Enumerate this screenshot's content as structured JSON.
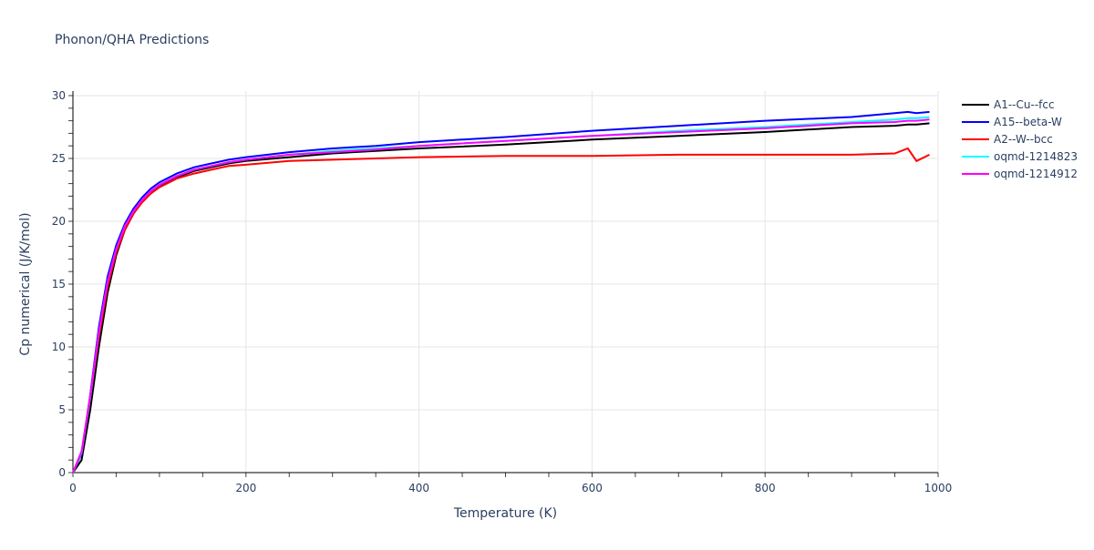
{
  "chart_data": {
    "type": "line",
    "title": "Phonon/QHA Predictions",
    "xlabel": "Temperature (K)",
    "ylabel": "Cp numerical (J/K/mol)",
    "xlim": [
      0,
      1000
    ],
    "ylim": [
      0,
      30
    ],
    "xticks": [
      0,
      200,
      400,
      600,
      800,
      1000
    ],
    "yticks": [
      0,
      5,
      10,
      15,
      20,
      25,
      30
    ],
    "grid": true,
    "legend_position": "right",
    "x": [
      0,
      10,
      20,
      30,
      40,
      50,
      60,
      70,
      80,
      90,
      100,
      120,
      140,
      160,
      180,
      200,
      250,
      300,
      350,
      400,
      500,
      600,
      700,
      800,
      900,
      950,
      965,
      975,
      990
    ],
    "series": [
      {
        "name": "A1--Cu--fcc",
        "color": "#000000",
        "values": [
          0,
          1.0,
          5.0,
          10.0,
          14.3,
          17.3,
          19.3,
          20.6,
          21.6,
          22.3,
          22.8,
          23.5,
          24.0,
          24.3,
          24.6,
          24.8,
          25.1,
          25.4,
          25.6,
          25.8,
          26.1,
          26.5,
          26.8,
          27.1,
          27.5,
          27.6,
          27.7,
          27.7,
          27.8
        ]
      },
      {
        "name": "A15--beta-W",
        "color": "#0000ff",
        "values": [
          0,
          1.5,
          6.2,
          11.6,
          15.6,
          18.1,
          19.8,
          21.0,
          21.9,
          22.6,
          23.1,
          23.8,
          24.3,
          24.6,
          24.9,
          25.1,
          25.5,
          25.8,
          26.0,
          26.3,
          26.7,
          27.2,
          27.6,
          28.0,
          28.3,
          28.6,
          28.7,
          28.6,
          28.7
        ]
      },
      {
        "name": "A2--W--bcc",
        "color": "#ff0000",
        "values": [
          0,
          1.6,
          6.0,
          10.8,
          14.8,
          17.5,
          19.3,
          20.6,
          21.5,
          22.2,
          22.7,
          23.4,
          23.8,
          24.1,
          24.4,
          24.5,
          24.8,
          24.9,
          25.0,
          25.1,
          25.2,
          25.2,
          25.3,
          25.3,
          25.3,
          25.4,
          25.8,
          24.8,
          25.3
        ]
      },
      {
        "name": "oqmd-1214823",
        "color": "#00ffff",
        "values": [
          0,
          1.6,
          6.0,
          11.2,
          15.2,
          17.8,
          19.6,
          20.8,
          21.7,
          22.4,
          22.9,
          23.6,
          24.1,
          24.4,
          24.7,
          24.9,
          25.3,
          25.6,
          25.8,
          26.0,
          26.4,
          26.8,
          27.2,
          27.5,
          27.9,
          28.1,
          28.2,
          28.2,
          28.3
        ]
      },
      {
        "name": "oqmd-1214912",
        "color": "#ff00ff",
        "values": [
          0,
          1.7,
          6.1,
          11.2,
          15.2,
          17.8,
          19.6,
          20.8,
          21.7,
          22.4,
          22.9,
          23.6,
          24.1,
          24.4,
          24.7,
          24.9,
          25.3,
          25.5,
          25.7,
          26.0,
          26.4,
          26.8,
          27.1,
          27.4,
          27.8,
          27.9,
          28.0,
          28.0,
          28.1
        ]
      }
    ]
  }
}
